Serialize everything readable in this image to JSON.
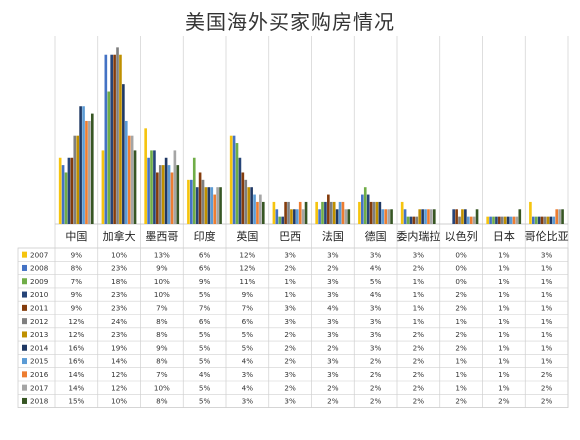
{
  "title": "美国海外买家购房情况",
  "chart_data": {
    "type": "bar",
    "title": "美国海外买家购房情况",
    "categories": [
      "中国",
      "加拿大",
      "墨西哥",
      "印度",
      "英国",
      "巴西",
      "法国",
      "德国",
      "委内瑞拉",
      "以色列",
      "日本",
      "哥伦比亚"
    ],
    "ylim": [
      0,
      25
    ],
    "legend": "table-left",
    "grid": true,
    "series": [
      {
        "name": "2007",
        "color": "#f5c40f",
        "values": [
          9,
          10,
          13,
          6,
          12,
          3,
          3,
          3,
          3,
          0,
          1,
          3
        ],
        "labels": [
          "9%",
          "10%",
          "13%",
          "6%",
          "12%",
          "3%",
          "3%",
          "3%",
          "3%",
          "0%",
          "1%",
          "3%"
        ]
      },
      {
        "name": "2008",
        "color": "#4472c4",
        "values": [
          8,
          23,
          9,
          6,
          12,
          2,
          2,
          4,
          2,
          0,
          1,
          1
        ],
        "labels": [
          "8%",
          "23%",
          "9%",
          "6%",
          "12%",
          "2%",
          "2%",
          "4%",
          "2%",
          "0%",
          "1%",
          "1%"
        ]
      },
      {
        "name": "2009",
        "color": "#70ad47",
        "values": [
          7,
          18,
          10,
          9,
          11,
          1,
          3,
          5,
          1,
          0,
          1,
          1
        ],
        "labels": [
          "7%",
          "18%",
          "10%",
          "9%",
          "11%",
          "1%",
          "3%",
          "5%",
          "1%",
          "0%",
          "1%",
          "1%"
        ]
      },
      {
        "name": "2010",
        "color": "#264478",
        "values": [
          9,
          23,
          10,
          5,
          9,
          1,
          3,
          4,
          1,
          2,
          1,
          1
        ],
        "labels": [
          "9%",
          "23%",
          "10%",
          "5%",
          "9%",
          "1%",
          "3%",
          "4%",
          "1%",
          "2%",
          "1%",
          "1%"
        ]
      },
      {
        "name": "2011",
        "color": "#843c0c",
        "values": [
          9,
          23,
          7,
          7,
          7,
          3,
          4,
          3,
          1,
          2,
          1,
          1
        ],
        "labels": [
          "9%",
          "23%",
          "7%",
          "7%",
          "7%",
          "3%",
          "4%",
          "3%",
          "1%",
          "2%",
          "1%",
          "1%"
        ]
      },
      {
        "name": "2012",
        "color": "#7f7f7f",
        "values": [
          12,
          24,
          8,
          6,
          6,
          3,
          3,
          3,
          1,
          1,
          1,
          1
        ],
        "labels": [
          "12%",
          "24%",
          "8%",
          "6%",
          "6%",
          "3%",
          "3%",
          "3%",
          "1%",
          "1%",
          "1%",
          "1%"
        ]
      },
      {
        "name": "2013",
        "color": "#bf9000",
        "values": [
          12,
          23,
          8,
          5,
          5,
          2,
          3,
          3,
          2,
          2,
          1,
          1
        ],
        "labels": [
          "12%",
          "23%",
          "8%",
          "5%",
          "5%",
          "2%",
          "3%",
          "3%",
          "2%",
          "2%",
          "1%",
          "1%"
        ]
      },
      {
        "name": "2014",
        "color": "#1f3864",
        "values": [
          16,
          19,
          9,
          5,
          5,
          2,
          2,
          3,
          2,
          2,
          1,
          1
        ],
        "labels": [
          "16%",
          "19%",
          "9%",
          "5%",
          "5%",
          "2%",
          "2%",
          "3%",
          "2%",
          "2%",
          "1%",
          "1%"
        ]
      },
      {
        "name": "2015",
        "color": "#5b9bd5",
        "values": [
          16,
          14,
          8,
          5,
          4,
          2,
          3,
          2,
          2,
          1,
          1,
          1
        ],
        "labels": [
          "16%",
          "14%",
          "8%",
          "5%",
          "4%",
          "2%",
          "3%",
          "2%",
          "2%",
          "1%",
          "1%",
          "1%"
        ]
      },
      {
        "name": "2016",
        "color": "#ed7d31",
        "values": [
          14,
          12,
          7,
          4,
          3,
          3,
          3,
          2,
          2,
          1,
          1,
          2
        ],
        "labels": [
          "14%",
          "12%",
          "7%",
          "4%",
          "3%",
          "3%",
          "3%",
          "2%",
          "2%",
          "1%",
          "1%",
          "2%"
        ]
      },
      {
        "name": "2017",
        "color": "#a5a5a5",
        "values": [
          14,
          12,
          10,
          5,
          4,
          2,
          2,
          2,
          2,
          1,
          1,
          2
        ],
        "labels": [
          "14%",
          "12%",
          "10%",
          "5%",
          "4%",
          "2%",
          "2%",
          "2%",
          "2%",
          "1%",
          "1%",
          "2%"
        ]
      },
      {
        "name": "2018",
        "color": "#375623",
        "values": [
          15,
          10,
          8,
          5,
          3,
          3,
          2,
          2,
          2,
          2,
          2,
          2
        ],
        "labels": [
          "15%",
          "10%",
          "8%",
          "5%",
          "3%",
          "3%",
          "2%",
          "2%",
          "2%",
          "2%",
          "2%",
          "2%"
        ]
      }
    ]
  }
}
